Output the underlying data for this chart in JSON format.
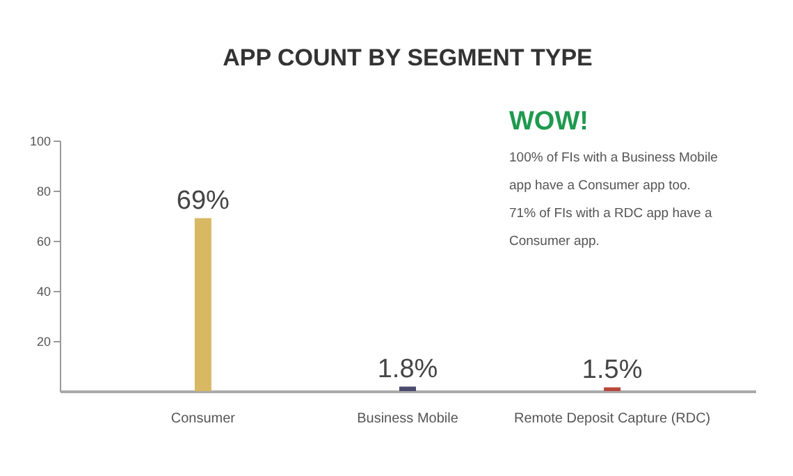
{
  "chart_data": {
    "type": "bar",
    "title": "APP COUNT BY SEGMENT TYPE",
    "categories": [
      "Consumer",
      "Business Mobile",
      "Remote Deposit Capture (RDC)"
    ],
    "values": [
      69,
      1.8,
      1.5
    ],
    "colors": [
      "#d8b862",
      "#4b4a6e",
      "#b9473b"
    ],
    "value_labels": [
      "69%",
      "1.8%",
      "1.5%"
    ],
    "ylim": [
      0,
      100
    ],
    "yticks": [
      20,
      40,
      60,
      80,
      100
    ],
    "grid": false,
    "annotations": [
      "WOW!",
      "100% of FIs with a Business Mobile app have a Consumer app too.",
      "71% of FIs with a RDC app have a Consumer app."
    ]
  }
}
